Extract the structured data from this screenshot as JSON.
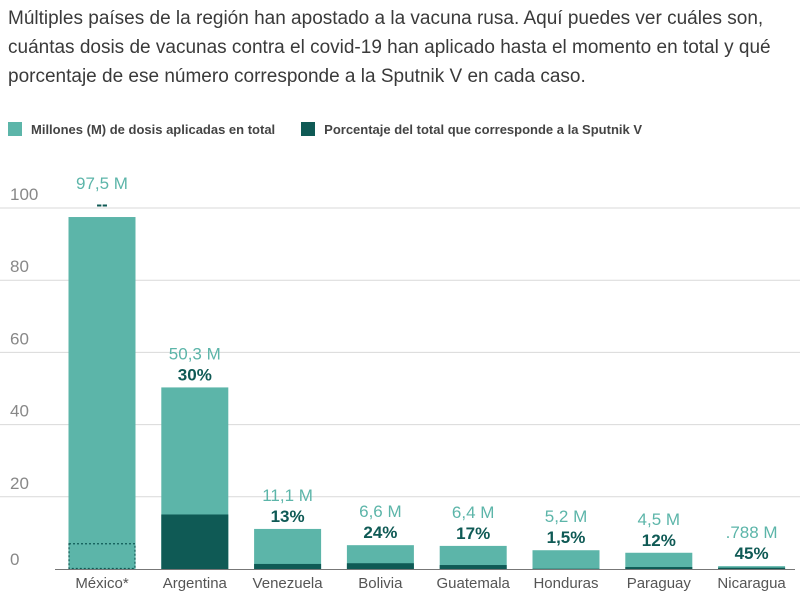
{
  "intro": "Múltiples países de la región han apostado a la vacuna rusa. Aquí puedes ver cuáles son, cuántas dosis de vacunas contra el covid-19 han aplicado hasta el momento en total y qué porcentaje de ese número corresponde a la Sputnik V en cada caso.",
  "colors": {
    "total": "#5cb5a9",
    "sputnik": "#0f5a55",
    "total_label": "#5cb5a9",
    "percent_label": "#0f5a55",
    "grid": "#d9d9d9",
    "axis_text": "#888888"
  },
  "chart_data": {
    "type": "bar",
    "title": "",
    "xlabel": "",
    "ylabel": "",
    "ylim": [
      0,
      100
    ],
    "yticks": [
      0,
      20,
      40,
      60,
      80,
      100
    ],
    "grid": true,
    "legend_position": "top-left",
    "categories": [
      "México*",
      "Argentina",
      "Venezuela",
      "Bolivia",
      "Guatemala",
      "Honduras",
      "Paraguay",
      "Nicaragua"
    ],
    "series": [
      {
        "name": "Millones (M) de dosis aplicadas en total",
        "values": [
          97.5,
          50.3,
          11.1,
          6.6,
          6.4,
          5.2,
          4.5,
          0.788
        ],
        "labels": [
          "97,5 M",
          "50,3 M",
          "11,1 M",
          "6,6 M",
          "6,4 M",
          "5,2 M",
          "4,5 M",
          ".788 M"
        ]
      },
      {
        "name": "Porcentaje del total que corresponde a la Sputnik V",
        "values_percent": [
          null,
          30,
          13,
          24,
          17,
          1.5,
          12,
          45
        ],
        "labels": [
          "--",
          "30%",
          "13%",
          "24%",
          "17%",
          "1,5%",
          "12%",
          "45%"
        ],
        "values": [
          7,
          15.1,
          1.4,
          1.6,
          1.1,
          0.08,
          0.54,
          0.35
        ]
      }
    ]
  }
}
